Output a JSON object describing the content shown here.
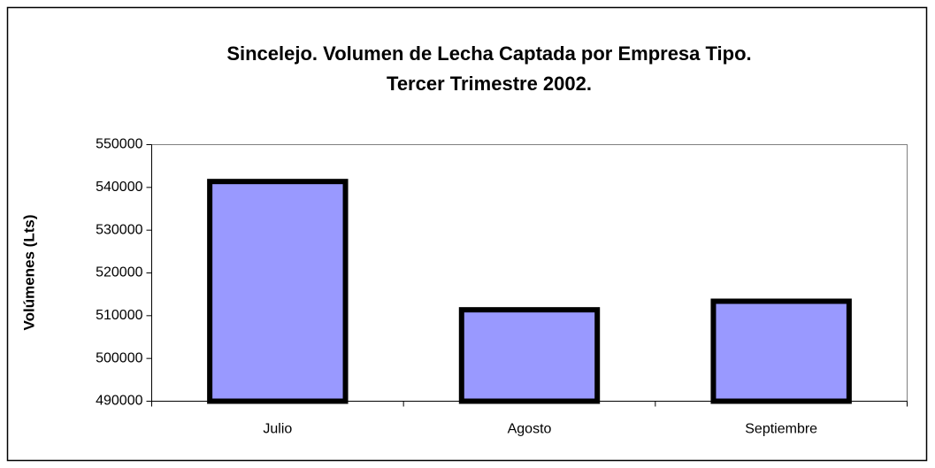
{
  "chart_data": {
    "type": "bar",
    "title": "Sincelejo. Volumen de Lecha Captada por Empresa Tipo.",
    "subtitle": "Tercer Trimestre 2002.",
    "ylabel": "Volúmenes (Lts)",
    "categories": [
      "Julio",
      "Agosto",
      "Septiembre"
    ],
    "values": [
      542000,
      512000,
      514000
    ],
    "color": "#9999ff",
    "ylim": [
      490000,
      550000
    ],
    "yticks": [
      490000,
      500000,
      510000,
      520000,
      530000,
      540000,
      550000
    ],
    "grid": false
  }
}
